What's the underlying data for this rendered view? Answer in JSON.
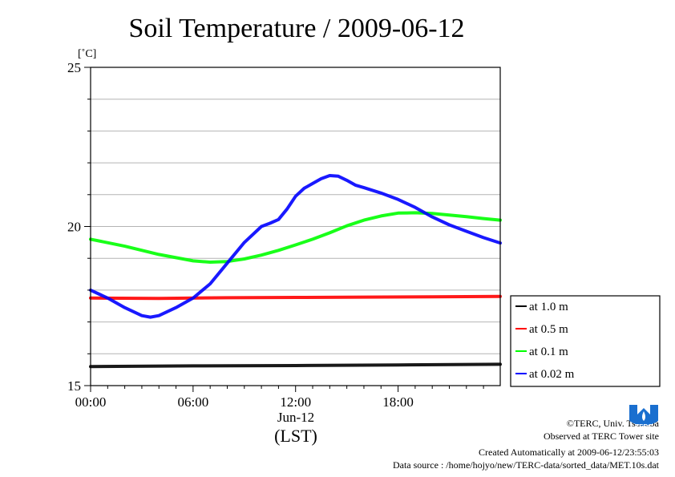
{
  "chart_data": {
    "type": "line",
    "title": "Soil Temperature / 2009-06-12",
    "y_unit": "[˚C]",
    "ylim": [
      15,
      25
    ],
    "y_ticks": [
      15,
      20,
      25
    ],
    "xlim": [
      0,
      23.98
    ],
    "x_ticks": [
      {
        "value": 0,
        "label": "00:00"
      },
      {
        "value": 6,
        "label": "06:00"
      },
      {
        "value": 12,
        "label": "12:00"
      },
      {
        "value": 18,
        "label": "18:00"
      }
    ],
    "x_date_label": "Jun-12",
    "x_axis_label": "(LST)",
    "grid": true,
    "legend_position": "right",
    "series": [
      {
        "name": "at 1.0 m",
        "color": "#000000",
        "x": [
          0,
          6,
          12,
          18,
          23.98
        ],
        "y": [
          15.6,
          15.62,
          15.63,
          15.65,
          15.67
        ]
      },
      {
        "name": "at 0.5 m",
        "color": "#ff0000",
        "x": [
          0,
          4,
          8,
          12,
          16,
          20,
          23.98
        ],
        "y": [
          17.75,
          17.74,
          17.76,
          17.77,
          17.78,
          17.79,
          17.8
        ]
      },
      {
        "name": "at 0.1 m",
        "color": "#00ff00",
        "x": [
          0,
          2,
          4,
          6,
          7,
          8,
          9,
          10,
          11,
          12,
          13,
          14,
          15,
          16,
          17,
          18,
          19,
          20,
          21,
          22,
          23,
          23.98
        ],
        "y": [
          19.6,
          19.38,
          19.12,
          18.92,
          18.88,
          18.9,
          18.98,
          19.1,
          19.25,
          19.42,
          19.6,
          19.8,
          20.02,
          20.2,
          20.33,
          20.42,
          20.43,
          20.41,
          20.36,
          20.31,
          20.25,
          20.2
        ]
      },
      {
        "name": "at 0.02 m",
        "color": "#0000ff",
        "x": [
          0,
          1,
          2,
          3,
          3.5,
          4,
          5,
          6,
          7,
          8,
          9,
          10,
          10.5,
          11,
          11.5,
          12,
          12.5,
          13,
          13.5,
          14,
          14.5,
          15,
          15.5,
          16,
          17,
          18,
          19,
          20,
          21,
          22,
          23,
          23.98
        ],
        "y": [
          18,
          17.75,
          17.45,
          17.2,
          17.15,
          17.2,
          17.45,
          17.75,
          18.2,
          18.85,
          19.5,
          20,
          20.1,
          20.22,
          20.55,
          20.95,
          21.2,
          21.35,
          21.5,
          21.6,
          21.58,
          21.45,
          21.3,
          21.22,
          21.05,
          20.85,
          20.6,
          20.3,
          20.05,
          19.85,
          19.65,
          19.48
        ]
      }
    ]
  },
  "credits": {
    "copyright": "©TERC, Univ. Tsukuba",
    "observed": "Observed at TERC Tower site",
    "created": "Created Automatically at 2009-06-12/23:55:03",
    "source": "Data source : /home/hojyo/new/TERC-data/sorted_data/MET.10s.dat"
  },
  "logo": {
    "text": "TERC",
    "color": "#1a6fcf"
  }
}
